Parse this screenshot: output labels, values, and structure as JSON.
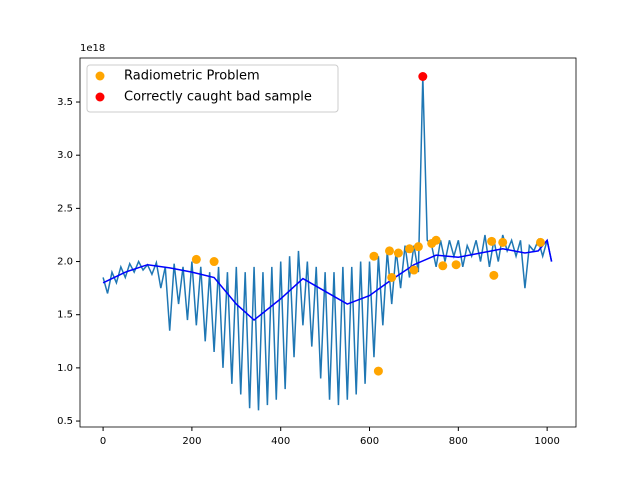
{
  "chart_data": {
    "type": "line",
    "offset_label": "1e18",
    "xlim": [
      -52,
      1065
    ],
    "ylim": [
      0.444,
      3.914
    ],
    "xticks": [
      0,
      200,
      400,
      600,
      800,
      1000
    ],
    "yticks": [
      {
        "value": 0.5,
        "label": "0.5"
      },
      {
        "value": 1,
        "label": "1.0"
      },
      {
        "value": 1.5,
        "label": "1.5"
      },
      {
        "value": 2,
        "label": "2.0"
      },
      {
        "value": 2.5,
        "label": "2.5"
      },
      {
        "value": 3,
        "label": "3.0"
      },
      {
        "value": 3.5,
        "label": "3.5"
      }
    ],
    "legend": "upper left",
    "series": [
      {
        "kind": "line",
        "color": "#1f77b4",
        "x": [
          0,
          10,
          20,
          30,
          40,
          50,
          60,
          70,
          80,
          90,
          100,
          110,
          120,
          130,
          140,
          150,
          160,
          170,
          180,
          190,
          200,
          210,
          220,
          230,
          240,
          250,
          260,
          270,
          280,
          290,
          300,
          310,
          320,
          330,
          340,
          350,
          360,
          370,
          380,
          390,
          400,
          410,
          420,
          430,
          440,
          450,
          460,
          470,
          480,
          490,
          500,
          510,
          520,
          530,
          540,
          550,
          560,
          570,
          580,
          590,
          600,
          610,
          620,
          630,
          640,
          650,
          660,
          670,
          680,
          690,
          700,
          710,
          720,
          730,
          740,
          750,
          760,
          770,
          780,
          790,
          800,
          810,
          820,
          830,
          840,
          850,
          860,
          870,
          880,
          890,
          900,
          910,
          920,
          930,
          940,
          950,
          960,
          970,
          980,
          990,
          1000,
          1010
        ],
        "values": [
          1.85,
          1.7,
          1.9,
          1.8,
          1.95,
          1.85,
          1.98,
          1.9,
          2.0,
          1.92,
          1.97,
          1.88,
          1.99,
          1.75,
          1.95,
          1.35,
          1.98,
          1.6,
          1.95,
          1.45,
          2.0,
          1.4,
          1.95,
          1.25,
          1.9,
          1.15,
          1.95,
          1.0,
          1.9,
          0.85,
          1.95,
          0.75,
          1.9,
          0.62,
          1.95,
          0.6,
          1.9,
          0.65,
          1.95,
          0.7,
          2.0,
          0.8,
          2.05,
          1.1,
          2.1,
          1.4,
          2.0,
          1.2,
          1.95,
          0.9,
          1.9,
          0.7,
          1.9,
          0.65,
          1.95,
          0.7,
          1.95,
          0.75,
          2.0,
          0.85,
          2.0,
          1.1,
          2.05,
          1.4,
          2.1,
          1.6,
          2.1,
          1.75,
          2.15,
          1.85,
          2.15,
          1.9,
          3.74,
          2.2,
          2.15,
          1.95,
          2.2,
          2.0,
          2.2,
          2.05,
          2.2,
          1.95,
          2.15,
          2.05,
          2.2,
          2.0,
          2.25,
          1.95,
          2.2,
          2.0,
          2.25,
          2.1,
          2.2,
          2.05,
          2.2,
          1.75,
          2.15,
          2.1,
          2.2,
          2.05,
          2.2,
          2.0
        ]
      },
      {
        "kind": "line",
        "color": "#0000ff",
        "x": [
          0,
          50,
          100,
          150,
          200,
          250,
          300,
          340,
          400,
          450,
          500,
          550,
          600,
          650,
          700,
          750,
          800,
          850,
          900,
          950,
          980,
          1000,
          1010
        ],
        "values": [
          1.8,
          1.9,
          1.97,
          1.94,
          1.9,
          1.85,
          1.6,
          1.45,
          1.65,
          1.84,
          1.72,
          1.6,
          1.68,
          1.83,
          1.97,
          2.06,
          2.04,
          2.08,
          2.12,
          2.08,
          2.1,
          2.2,
          2.0
        ]
      },
      {
        "kind": "scatter",
        "name": "Radiometric Problem",
        "color": "#ffa500",
        "x": [
          210,
          250,
          610,
          620,
          645,
          650,
          665,
          690,
          700,
          710,
          740,
          750,
          765,
          795,
          875,
          880,
          900,
          985
        ],
        "values": [
          2.02,
          2.0,
          2.05,
          0.97,
          2.1,
          1.85,
          2.08,
          2.12,
          1.92,
          2.14,
          2.17,
          2.2,
          1.96,
          1.97,
          2.19,
          1.87,
          2.18,
          2.18
        ]
      },
      {
        "kind": "scatter",
        "name": "Correctly caught bad sample",
        "color": "#ff0000",
        "x": [
          720
        ],
        "values": [
          3.74
        ]
      }
    ]
  }
}
